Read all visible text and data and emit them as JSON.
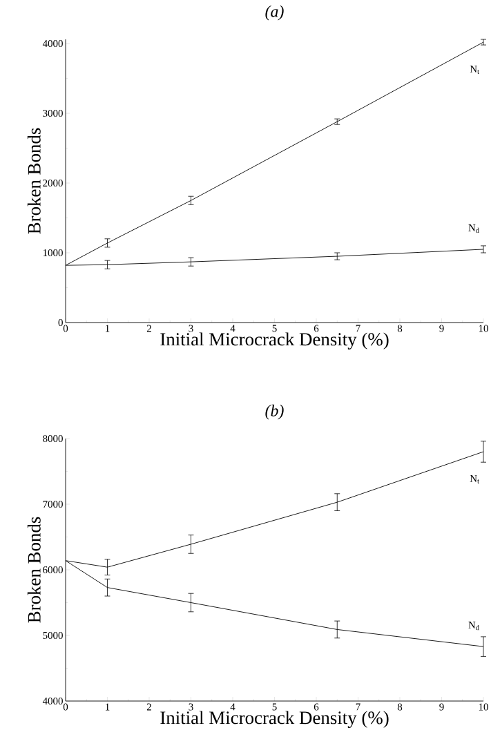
{
  "chart_data": [
    {
      "type": "line",
      "title": "(a)",
      "xlabel": "Initial Microcrack Density (%)",
      "ylabel": "Broken Bonds",
      "x": [
        0,
        1,
        3,
        6.5,
        10
      ],
      "series": [
        {
          "name": "N$_{t}$",
          "color": "#000000",
          "values": [
            820,
            1140,
            1750,
            2880,
            4020
          ],
          "errors": [
            null,
            60,
            60,
            40,
            40
          ]
        },
        {
          "name": "N$_{d}$",
          "color": "#000000",
          "values": [
            820,
            830,
            870,
            950,
            1050
          ],
          "errors": [
            null,
            60,
            60,
            50,
            50
          ]
        }
      ],
      "xlim": [
        0,
        10
      ],
      "xticks": [
        0,
        1,
        2,
        3,
        4,
        5,
        6,
        7,
        8,
        9,
        10
      ],
      "ylim": [
        0,
        4060
      ],
      "yticks": [
        0,
        1000,
        2000,
        3000,
        4000
      ],
      "grid": false,
      "marker": "none",
      "line_style": "solid"
    },
    {
      "type": "line",
      "title": "(b)",
      "xlabel": "Initial Microcrack Density (%)",
      "ylabel": "Broken Bonds",
      "x": [
        0,
        1,
        3,
        6.5,
        10
      ],
      "series": [
        {
          "name": "N$_{t}$",
          "color": "#000000",
          "values": [
            6140,
            6040,
            6390,
            7030,
            7800
          ],
          "errors": [
            null,
            120,
            140,
            130,
            160
          ]
        },
        {
          "name": "N$_{d}$",
          "color": "#000000",
          "values": [
            6140,
            5730,
            5500,
            5090,
            4830
          ],
          "errors": [
            null,
            130,
            140,
            130,
            150
          ]
        }
      ],
      "xlim": [
        0,
        10
      ],
      "xticks": [
        0,
        1,
        2,
        3,
        4,
        5,
        6,
        7,
        8,
        9,
        10
      ],
      "ylim": [
        4000,
        8000
      ],
      "yticks": [
        4000,
        5000,
        6000,
        7000,
        8000
      ],
      "grid": false,
      "marker": "none",
      "line_style": "solid"
    }
  ]
}
